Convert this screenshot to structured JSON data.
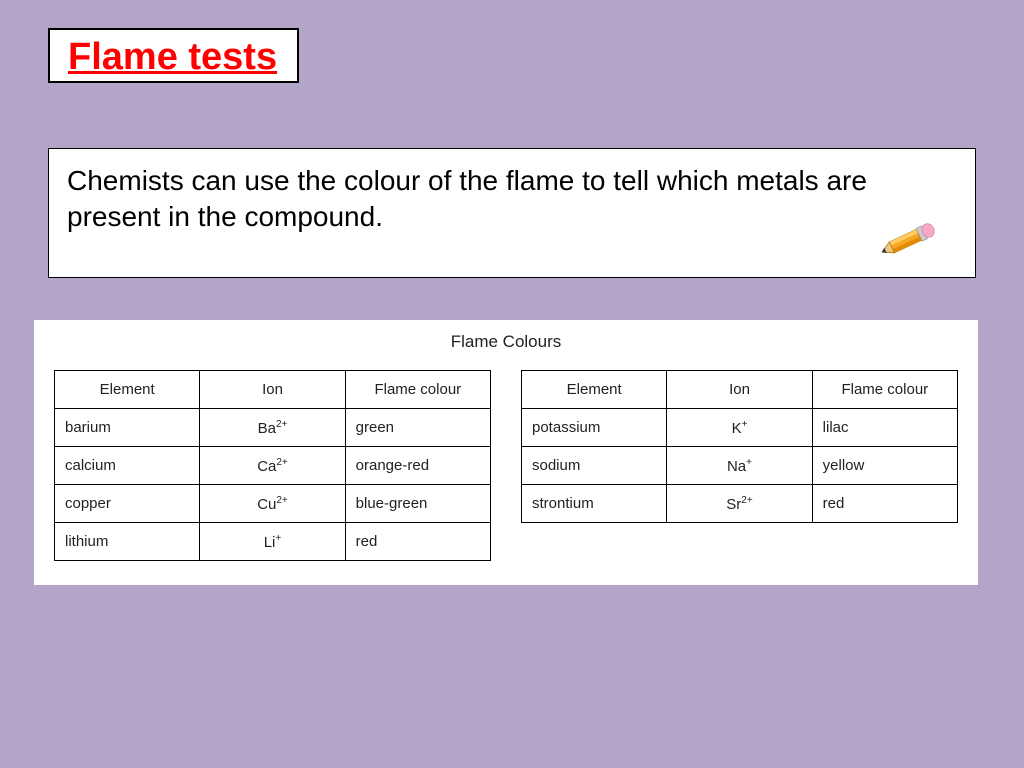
{
  "title": "Flame tests",
  "description": "Chemists can use the colour of the flame to tell which metals are present in the compound.",
  "panel_title": "Flame Colours",
  "headers": [
    "Element",
    "Ion",
    "Flame colour"
  ],
  "left_table": [
    {
      "element": "barium",
      "ion_sym": "Ba",
      "ion_charge": "2+",
      "colour": "green"
    },
    {
      "element": "calcium",
      "ion_sym": "Ca",
      "ion_charge": "2+",
      "colour": "orange-red"
    },
    {
      "element": "copper",
      "ion_sym": "Cu",
      "ion_charge": "2+",
      "colour": "blue-green"
    },
    {
      "element": "lithium",
      "ion_sym": "Li",
      "ion_charge": "+",
      "colour": "red"
    }
  ],
  "right_table": [
    {
      "element": "potassium",
      "ion_sym": "K",
      "ion_charge": "+",
      "colour": "lilac"
    },
    {
      "element": "sodium",
      "ion_sym": "Na",
      "ion_charge": "+",
      "colour": "yellow"
    },
    {
      "element": "strontium",
      "ion_sym": "Sr",
      "ion_charge": "2+",
      "colour": "red"
    }
  ],
  "colors": {
    "background": "#b3a5c7",
    "title_text": "#ff0000",
    "box_bg": "#ffffff",
    "border": "#000000",
    "table_text": "#222222"
  },
  "fonts": {
    "handwriting": "Comic Sans MS",
    "table": "Arial",
    "title_size_pt": 38,
    "desc_size_pt": 28,
    "panel_title_size_pt": 17,
    "cell_size_pt": 15
  }
}
